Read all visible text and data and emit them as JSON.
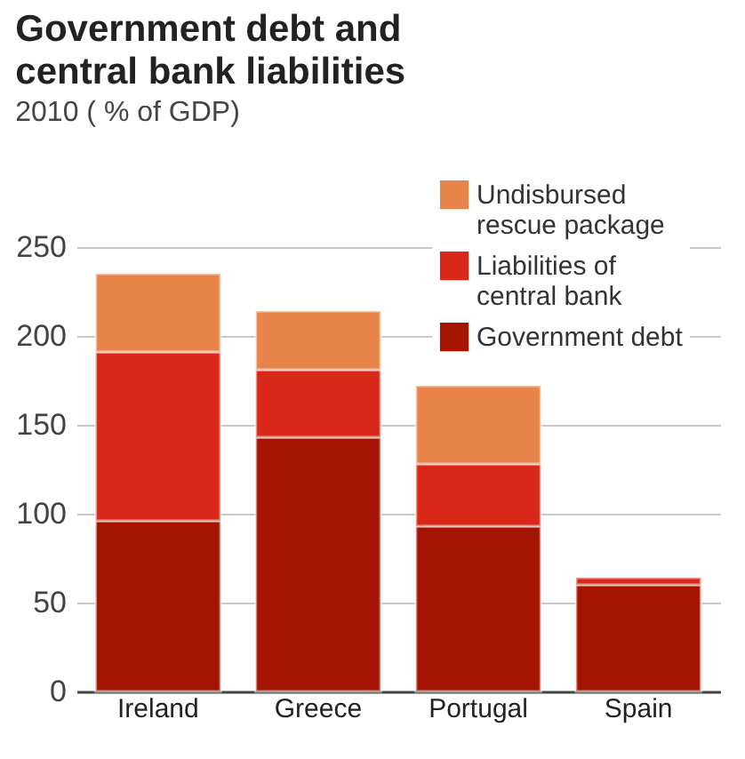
{
  "chart_data": {
    "type": "bar",
    "title": "Government debt and central bank liabilities",
    "subtitle": "2010 ( % of GDP)",
    "categories": [
      "Ireland",
      "Greece",
      "Portugal",
      "Spain"
    ],
    "stacked": true,
    "series": [
      {
        "name": "Government debt",
        "color": "#a51400",
        "values": [
          96,
          143,
          93,
          60
        ]
      },
      {
        "name": "Liabilities of central bank",
        "color": "#d92818",
        "values": [
          95,
          38,
          35,
          4
        ]
      },
      {
        "name": "Undisbursed rescue package",
        "color": "#e8834a",
        "values": [
          44,
          33,
          44,
          null
        ]
      }
    ],
    "ylim": [
      0,
      250
    ],
    "yticks": [
      0,
      50,
      100,
      150,
      200,
      250
    ],
    "grid": "y",
    "legend": "top right"
  }
}
